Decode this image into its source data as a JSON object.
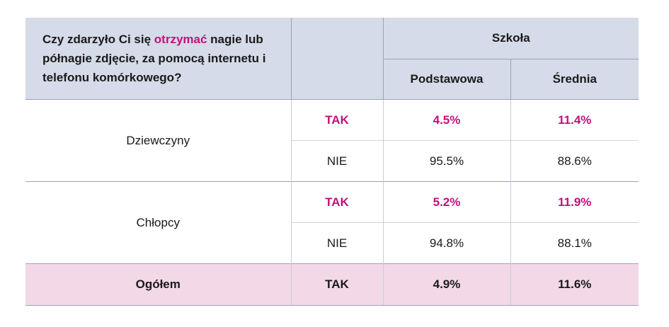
{
  "header": {
    "question_before": "Czy zdarzyło Ci się ",
    "question_highlight": "otrzymać",
    "question_after": " nagie lub półnagie zdjęcie, za pomocą internetu i telefonu komórkowego?",
    "group": "Szkoła",
    "col1": "Podstawowa",
    "col2": "Średnia"
  },
  "rows": [
    {
      "group": "Dziewczyny",
      "answers": [
        {
          "label": "TAK",
          "v1": "4.5%",
          "v2": "11.4%"
        },
        {
          "label": "NIE",
          "v1": "95.5%",
          "v2": "88.6%"
        }
      ]
    },
    {
      "group": "Chłopcy",
      "answers": [
        {
          "label": "TAK",
          "v1": "5.2%",
          "v2": "11.9%"
        },
        {
          "label": "NIE",
          "v1": "94.8%",
          "v2": "88.1%"
        }
      ]
    }
  ],
  "total": {
    "group": "Ogółem",
    "label": "TAK",
    "v1": "4.9%",
    "v2": "11.6%"
  },
  "colors": {
    "highlight": "#c2117a",
    "header_bg": "#d5dbe8",
    "total_bg": "#f3d9e8"
  }
}
